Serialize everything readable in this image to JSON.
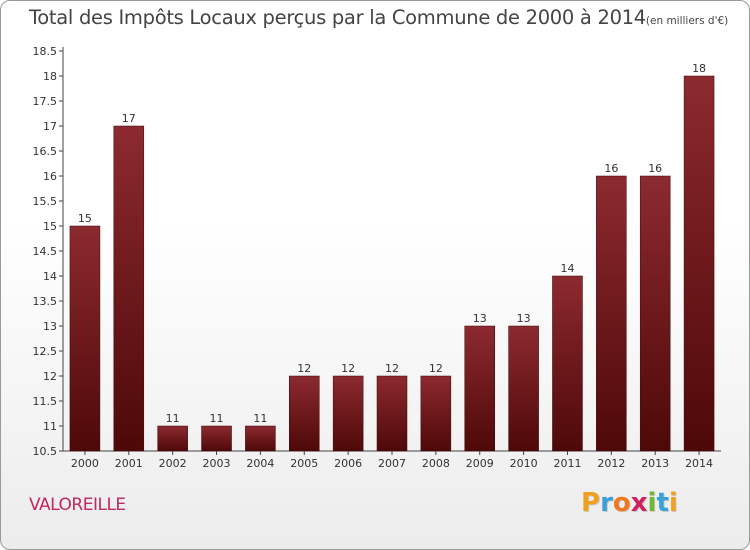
{
  "chart_data": {
    "type": "bar",
    "title": "Total des Impôts Locaux perçus par la Commune de 2000 à 2014",
    "title_unit": "(en milliers d'€)",
    "categories": [
      "2000",
      "2001",
      "2002",
      "2003",
      "2004",
      "2005",
      "2006",
      "2007",
      "2008",
      "2009",
      "2010",
      "2011",
      "2012",
      "2013",
      "2014"
    ],
    "values": [
      15,
      17,
      11,
      11,
      11,
      12,
      12,
      12,
      12,
      13,
      13,
      14,
      16,
      16,
      18
    ],
    "ylim": [
      10.5,
      18.5
    ],
    "yticks": [
      "10.5",
      "11",
      "11.5",
      "12",
      "12.5",
      "13",
      "13.5",
      "14",
      "14.5",
      "15",
      "15.5",
      "16",
      "16.5",
      "17",
      "17.5",
      "18",
      "18.5"
    ],
    "xlabel": "",
    "ylabel": "",
    "grid": false,
    "bar_color": "#6e1a1f"
  },
  "footer": {
    "commune": "VALOREILLE",
    "brand_letters": [
      "P",
      "r",
      "o",
      "x",
      "i",
      "t",
      "i"
    ],
    "brand_colors": [
      "#f0a020",
      "#3aa0d8",
      "#f07820",
      "#d02060",
      "#70b830",
      "#3aa0d8",
      "#f0a020"
    ]
  }
}
